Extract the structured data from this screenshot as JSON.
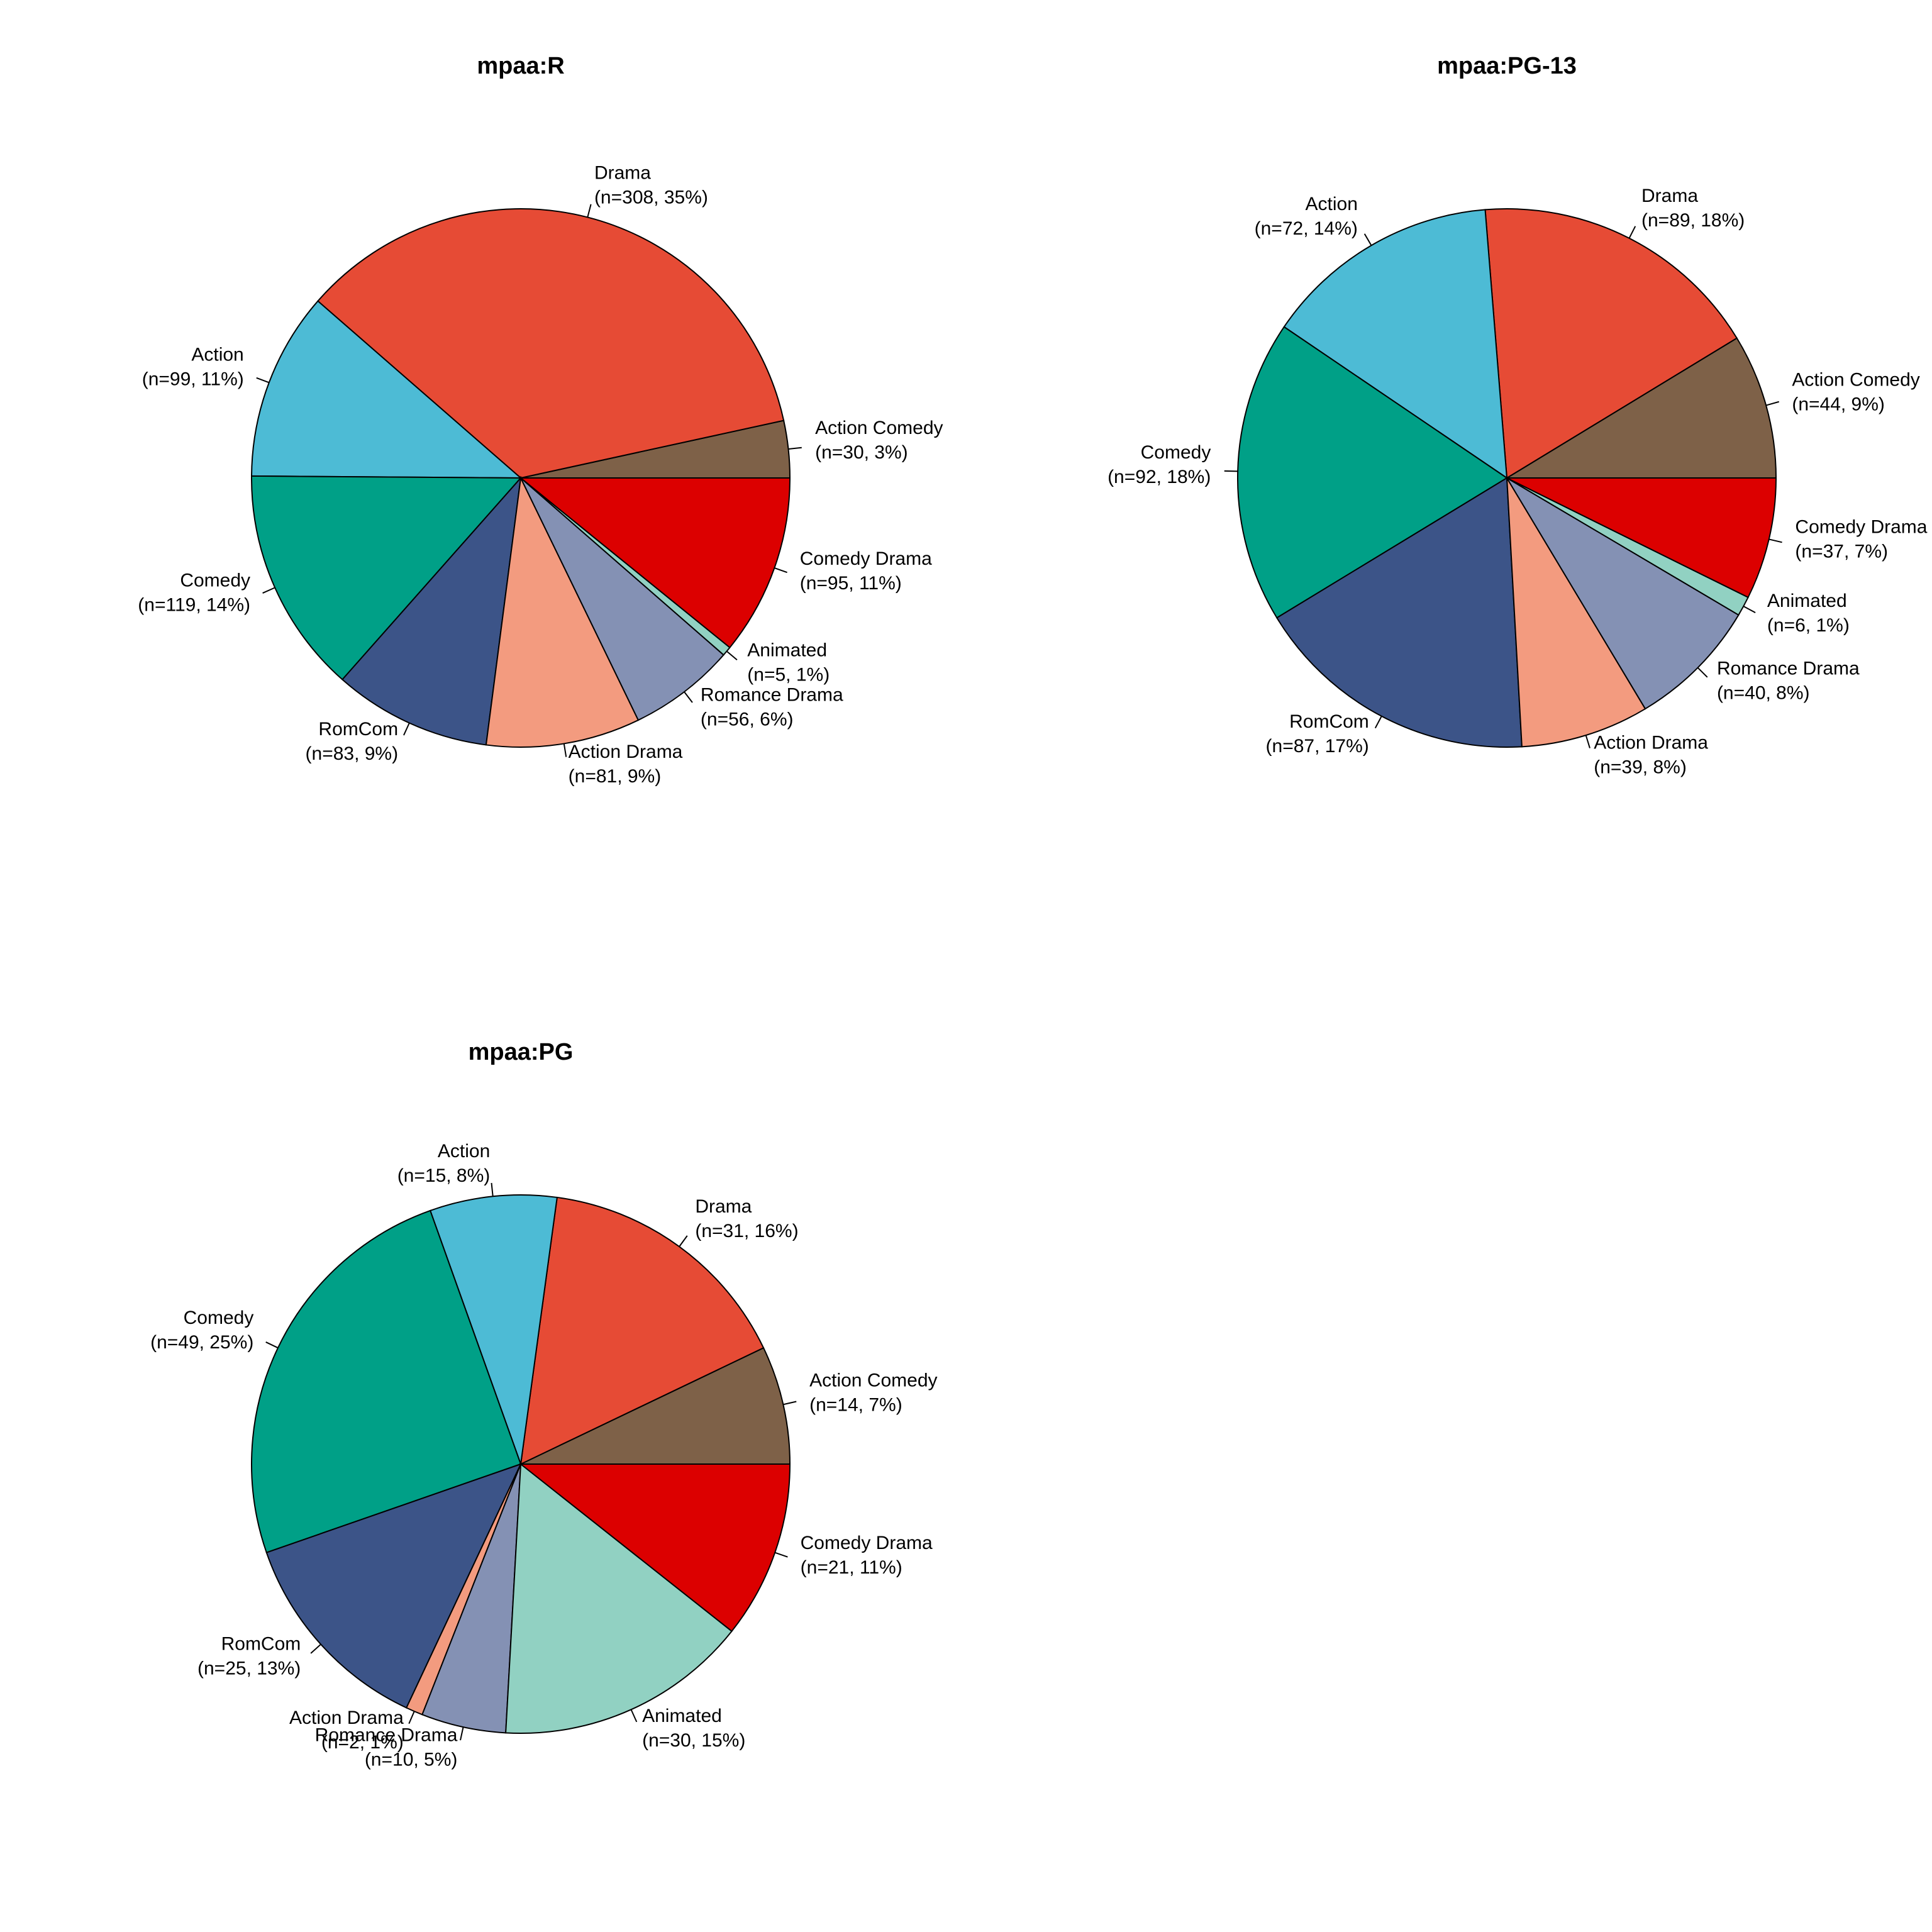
{
  "chart_data": [
    {
      "type": "pie",
      "title": "mpaa:R",
      "slices": [
        {
          "label": "Action Comedy",
          "n_label": "(n=30, 3%)",
          "value": 30,
          "color": "#7e6148"
        },
        {
          "label": "Drama",
          "n_label": "(n=308, 35%)",
          "value": 308,
          "color": "#e64b35"
        },
        {
          "label": "Action",
          "n_label": "(n=99, 11%)",
          "value": 99,
          "color": "#4dbbd5"
        },
        {
          "label": "Comedy",
          "n_label": "(n=119, 14%)",
          "value": 119,
          "color": "#00a087"
        },
        {
          "label": "RomCom",
          "n_label": "(n=83, 9%)",
          "value": 83,
          "color": "#3c5488"
        },
        {
          "label": "Action Drama",
          "n_label": "(n=81, 9%)",
          "value": 81,
          "color": "#f39b7f"
        },
        {
          "label": "Romance Drama",
          "n_label": "(n=56, 6%)",
          "value": 56,
          "color": "#8491b4"
        },
        {
          "label": "Animated",
          "n_label": "(n=5, 1%)",
          "value": 5,
          "color": "#91d1c2"
        },
        {
          "label": "Comedy Drama",
          "n_label": "(n=95, 11%)",
          "value": 95,
          "color": "#dc0000"
        }
      ]
    },
    {
      "type": "pie",
      "title": "mpaa:PG-13",
      "slices": [
        {
          "label": "Action Comedy",
          "n_label": "(n=44, 9%)",
          "value": 44,
          "color": "#7e6148"
        },
        {
          "label": "Drama",
          "n_label": "(n=89, 18%)",
          "value": 89,
          "color": "#e64b35"
        },
        {
          "label": "Action",
          "n_label": "(n=72, 14%)",
          "value": 72,
          "color": "#4dbbd5"
        },
        {
          "label": "Comedy",
          "n_label": "(n=92, 18%)",
          "value": 92,
          "color": "#00a087"
        },
        {
          "label": "RomCom",
          "n_label": "(n=87, 17%)",
          "value": 87,
          "color": "#3c5488"
        },
        {
          "label": "Action Drama",
          "n_label": "(n=39, 8%)",
          "value": 39,
          "color": "#f39b7f"
        },
        {
          "label": "Romance Drama",
          "n_label": "(n=40, 8%)",
          "value": 40,
          "color": "#8491b4"
        },
        {
          "label": "Animated",
          "n_label": "(n=6, 1%)",
          "value": 6,
          "color": "#91d1c2"
        },
        {
          "label": "Comedy Drama",
          "n_label": "(n=37, 7%)",
          "value": 37,
          "color": "#dc0000"
        }
      ]
    },
    {
      "type": "pie",
      "title": "mpaa:PG",
      "slices": [
        {
          "label": "Action Comedy",
          "n_label": "(n=14, 7%)",
          "value": 14,
          "color": "#7e6148"
        },
        {
          "label": "Drama",
          "n_label": "(n=31, 16%)",
          "value": 31,
          "color": "#e64b35"
        },
        {
          "label": "Action",
          "n_label": "(n=15, 8%)",
          "value": 15,
          "color": "#4dbbd5"
        },
        {
          "label": "Comedy",
          "n_label": "(n=49, 25%)",
          "value": 49,
          "color": "#00a087"
        },
        {
          "label": "RomCom",
          "n_label": "(n=25, 13%)",
          "value": 25,
          "color": "#3c5488"
        },
        {
          "label": "Action Drama",
          "n_label": "(n=2, 1%)",
          "value": 2,
          "color": "#f39b7f"
        },
        {
          "label": "Romance Drama",
          "n_label": "(n=10, 5%)",
          "value": 10,
          "color": "#8491b4"
        },
        {
          "label": "Animated",
          "n_label": "(n=30, 15%)",
          "value": 30,
          "color": "#91d1c2"
        },
        {
          "label": "Comedy Drama",
          "n_label": "(n=21, 11%)",
          "value": 21,
          "color": "#dc0000"
        }
      ]
    }
  ]
}
